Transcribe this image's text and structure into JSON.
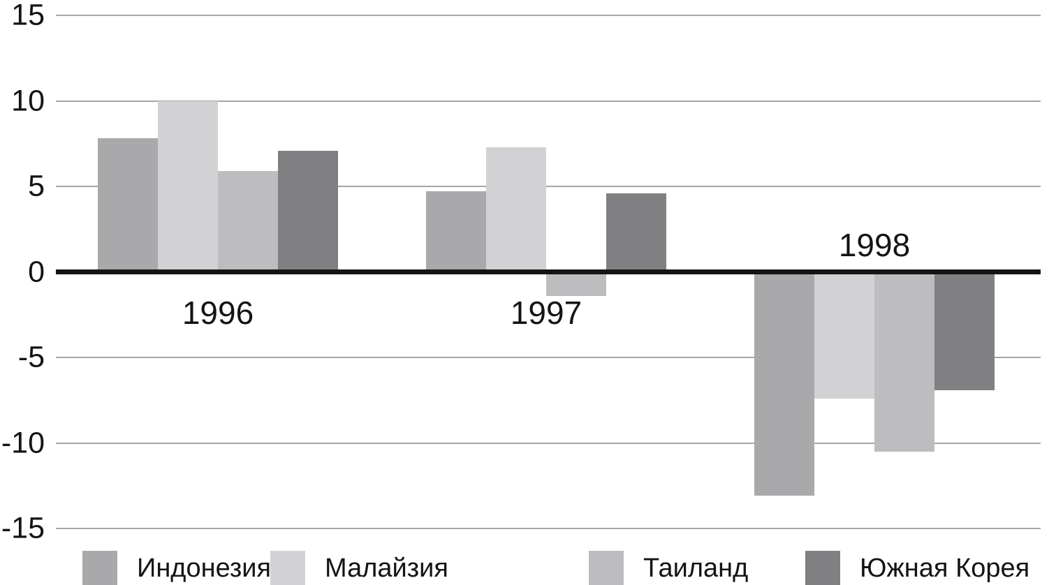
{
  "chart_data": {
    "type": "bar",
    "title": "",
    "xlabel": "",
    "ylabel": "",
    "categories": [
      "1996",
      "1997",
      "1998"
    ],
    "series": [
      {
        "id": "indonesia",
        "name": "Индонезия",
        "color": "#a9a9ab",
        "values": [
          7.8,
          4.7,
          -13.1
        ]
      },
      {
        "id": "malaysia",
        "name": "Малайзия",
        "color": "#d2d2d4",
        "values": [
          10.0,
          7.3,
          -7.4
        ]
      },
      {
        "id": "thailand",
        "name": "Таиланд",
        "color": "#bdbdbf",
        "values": [
          5.9,
          -1.4,
          -10.5
        ]
      },
      {
        "id": "south-korea",
        "name": "Южная Корея",
        "color": "#808083",
        "values": [
          7.1,
          4.6,
          -6.9
        ]
      }
    ],
    "ylim": [
      -15,
      15
    ],
    "yticks": [
      15,
      10,
      5,
      0,
      -5,
      -10,
      -15
    ],
    "grid": true,
    "legend_position": "bottom",
    "colors": {
      "gridline": "#a6a6a6",
      "zero_line": "#151515",
      "text": "#141414"
    }
  }
}
